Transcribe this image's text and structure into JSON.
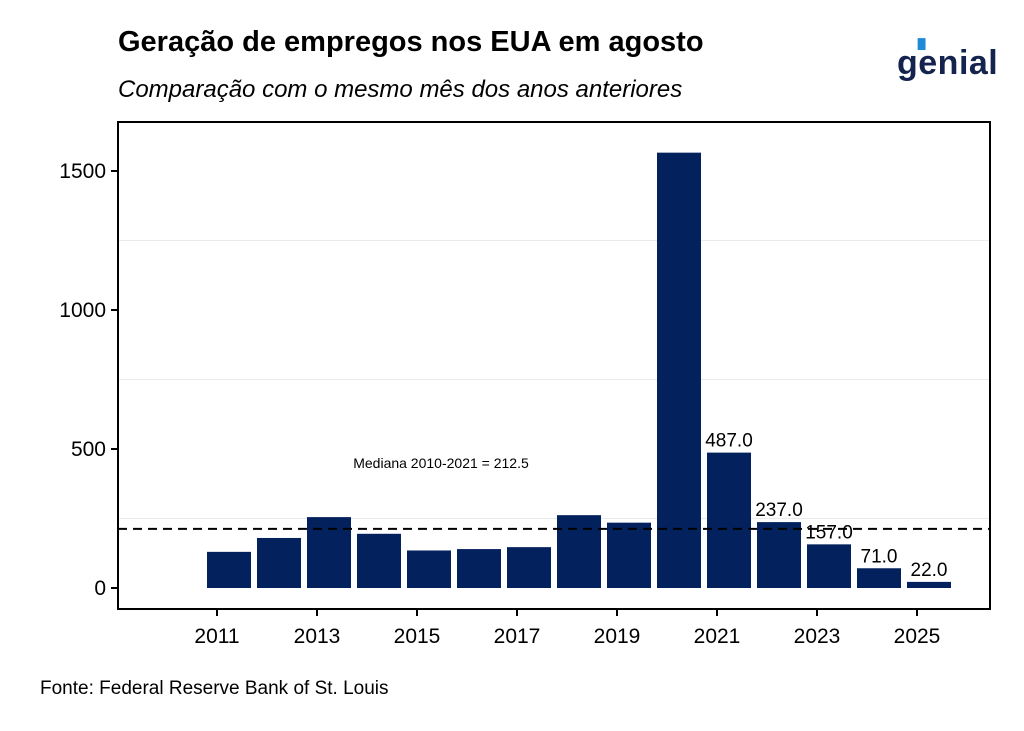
{
  "header": {
    "title": "Geração de empregos nos EUA em agosto",
    "subtitle": "Comparação com o mesmo mês dos anos anteriores"
  },
  "logo": {
    "text": "genial"
  },
  "source": "Fonte: Federal Reserve Bank of St. Louis",
  "colors": {
    "bar": "#03215d",
    "median_line": "#000000",
    "grid": "#ebebeb"
  },
  "chart_data": {
    "type": "bar",
    "categories": [
      "2011",
      "2012",
      "2013",
      "2014",
      "2015",
      "2016",
      "2017",
      "2018",
      "2019",
      "2020",
      "2021",
      "2022",
      "2023",
      "2024",
      "2025"
    ],
    "values": [
      130,
      180,
      255,
      195,
      135,
      140,
      147,
      262,
      235,
      1566,
      487.0,
      237.0,
      157.0,
      71.0,
      22.0
    ],
    "data_labels": [
      null,
      null,
      null,
      null,
      null,
      null,
      null,
      null,
      null,
      null,
      "487.0",
      "237.0",
      "157.0",
      "71.0",
      "22.0"
    ],
    "x_tick_labels": [
      "2011",
      "2013",
      "2015",
      "2017",
      "2019",
      "2021",
      "2023",
      "2025"
    ],
    "y_ticks": [
      0,
      500,
      1000,
      1500
    ],
    "y_tick_labels": [
      "0",
      "500",
      "1000",
      "1500"
    ],
    "ylim": [
      -75,
      1680
    ],
    "median": {
      "value": 212.5,
      "label": "Mediana 2010-2021 = 212.5"
    },
    "grid": true,
    "legend": "none"
  }
}
